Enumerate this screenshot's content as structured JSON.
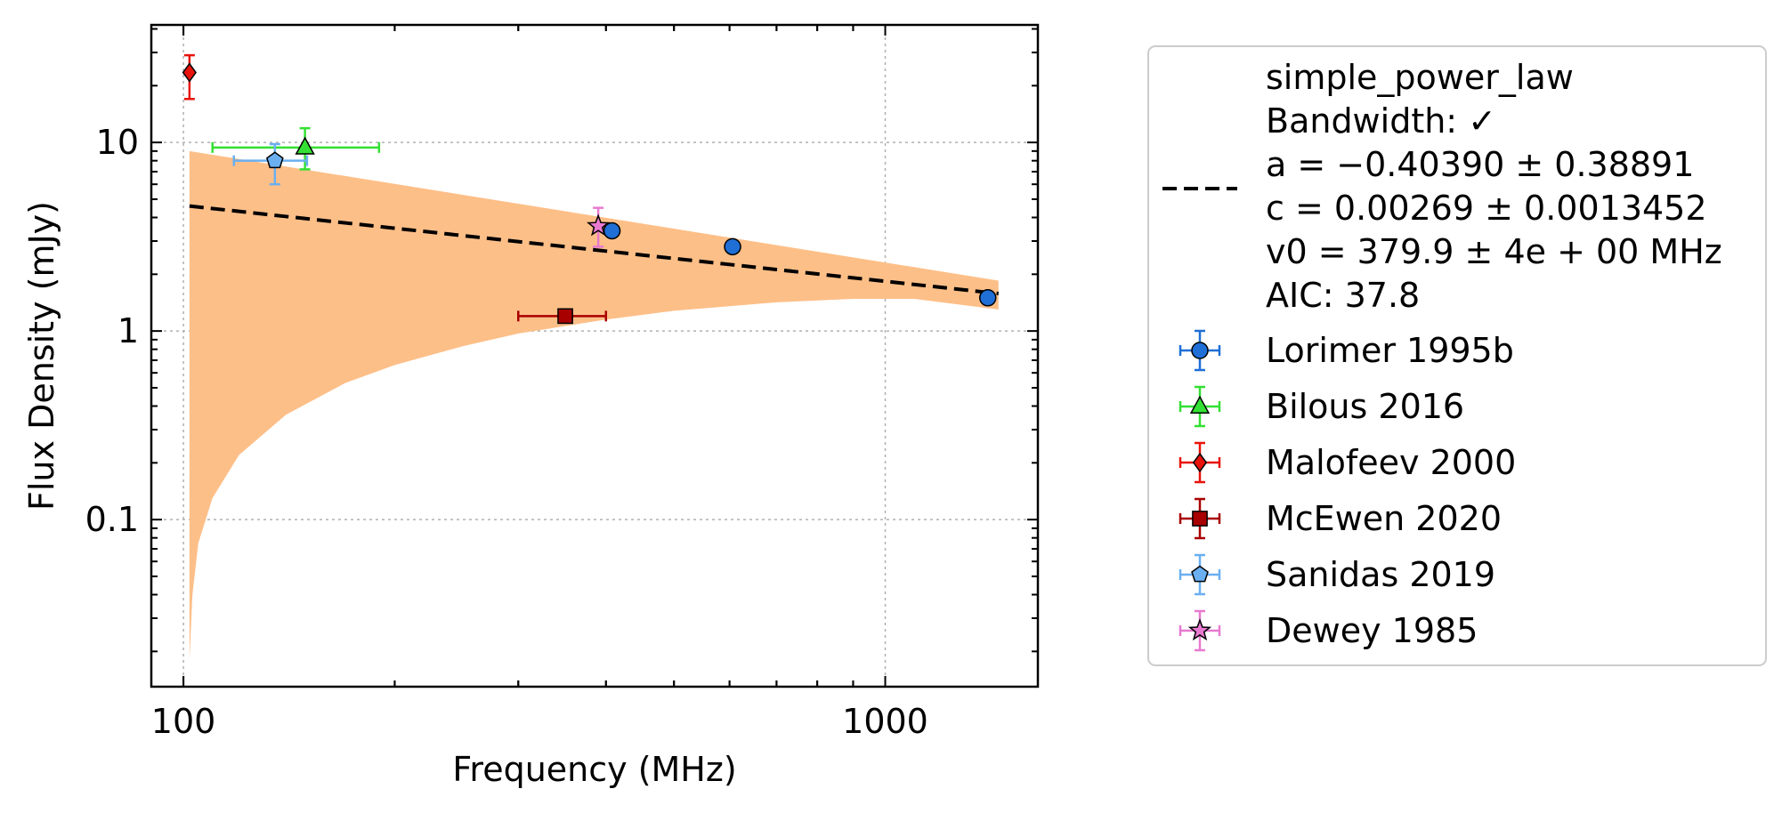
{
  "chart_data": {
    "type": "scatter",
    "xlabel": "Frequency (MHz)",
    "ylabel": "Flux Density (mJy)",
    "xscale": "log",
    "yscale": "log",
    "xlim": [
      90,
      1650
    ],
    "ylim": [
      0.013,
      42
    ],
    "xticks": [
      {
        "value": 100,
        "label": "100"
      },
      {
        "value": 1000,
        "label": "1000"
      }
    ],
    "yticks": [
      {
        "value": 0.1,
        "label": "0.1"
      },
      {
        "value": 1,
        "label": "1"
      },
      {
        "value": 10,
        "label": "10"
      }
    ],
    "grid": true,
    "legend_position": "outside-right",
    "fit": {
      "name": "simple_power_law",
      "legend_lines": [
        "simple_power_law",
        "Bandwidth: ✓",
        "a = −0.40390 ± 0.38891",
        "c = 0.00269 ± 0.0013452",
        "v0 = 379.9 ± 4e + 00 MHz",
        "AIC: 37.8"
      ],
      "color": "#000000",
      "band_color": "#fdbf88",
      "line": {
        "x": [
          102,
          1450
        ],
        "y": [
          4.6,
          1.58
        ]
      },
      "band_upper": {
        "x": [
          102,
          1450
        ],
        "y": [
          9.0,
          1.85
        ]
      },
      "band_lower": {
        "x": [
          102,
          103,
          105,
          110,
          120,
          140,
          170,
          200,
          250,
          300,
          400,
          500,
          700,
          900,
          1100,
          1450
        ],
        "y": [
          0.018,
          0.04,
          0.075,
          0.13,
          0.22,
          0.36,
          0.53,
          0.66,
          0.83,
          0.97,
          1.15,
          1.28,
          1.42,
          1.48,
          1.48,
          1.3
        ]
      }
    },
    "series": [
      {
        "name": "Lorimer 1995b",
        "marker": "circle",
        "color": "#1f6fd6",
        "points": [
          {
            "x": 408,
            "y": 3.4,
            "yerr": [
              0.05,
              0.05
            ]
          },
          {
            "x": 606,
            "y": 2.8,
            "yerr": [
              0.05,
              0.05
            ]
          },
          {
            "x": 1400,
            "y": 1.5,
            "yerr": [
              0.03,
              0.03
            ]
          }
        ]
      },
      {
        "name": "Bilous 2016",
        "marker": "triangle",
        "color": "#33e033",
        "points": [
          {
            "x": 149,
            "y": 9.4,
            "xerr": [
              39,
              41
            ],
            "yerr": [
              2.2,
              2.5
            ]
          }
        ]
      },
      {
        "name": "Malofeev 2000",
        "marker": "diamond",
        "color": "#e8130c",
        "points": [
          {
            "x": 102,
            "y": 23.5,
            "yerr": [
              6.5,
              5.5
            ]
          }
        ]
      },
      {
        "name": "McEwen 2020",
        "marker": "square",
        "color": "#a80000",
        "points": [
          {
            "x": 350,
            "y": 1.2,
            "xerr": [
              50,
              50
            ],
            "yerr": [
              0.05,
              0.05
            ]
          }
        ]
      },
      {
        "name": "Sanidas 2019",
        "marker": "pentagon",
        "color": "#6aaff0",
        "points": [
          {
            "x": 135,
            "y": 8.0,
            "xerr": [
              17,
              15
            ],
            "yerr": [
              2.0,
              1.8
            ]
          }
        ]
      },
      {
        "name": "Dewey 1985",
        "marker": "star",
        "color": "#e87ad0",
        "points": [
          {
            "x": 390,
            "y": 3.6,
            "yerr": [
              0.8,
              0.9
            ]
          }
        ]
      }
    ]
  }
}
